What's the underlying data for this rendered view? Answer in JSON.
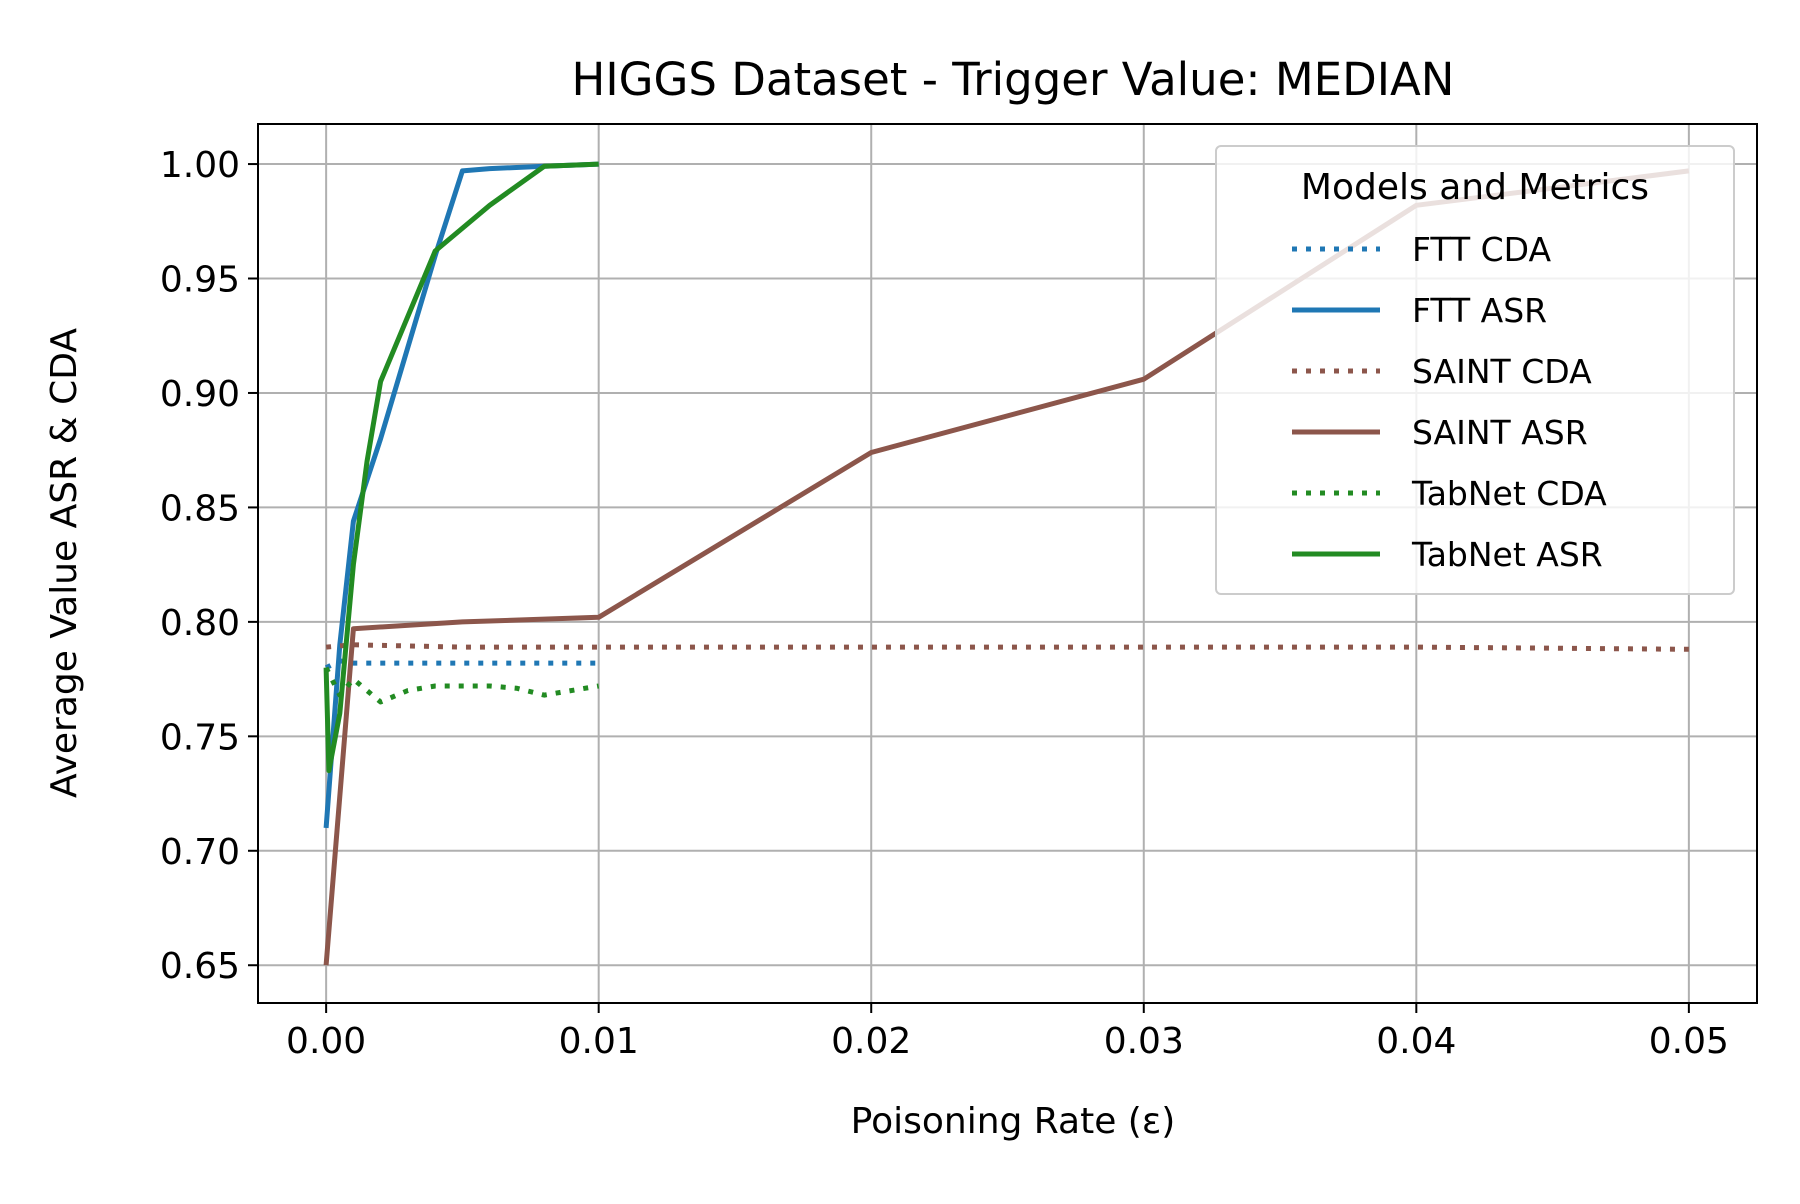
{
  "chart_data": {
    "type": "line",
    "title": "HIGGS Dataset - Trigger Value: MEDIAN",
    "xlabel": "Poisoning Rate (ε)",
    "ylabel": "Average Value ASR & CDA",
    "xlim": [
      -0.0025,
      0.0525
    ],
    "ylim": [
      0.6335,
      1.0175
    ],
    "x_ticks": [
      0.0,
      0.01,
      0.02,
      0.03,
      0.04,
      0.05
    ],
    "x_tick_labels": [
      "0.00",
      "0.01",
      "0.02",
      "0.03",
      "0.04",
      "0.05"
    ],
    "y_ticks": [
      0.65,
      0.7,
      0.75,
      0.8,
      0.85,
      0.9,
      0.95,
      1.0
    ],
    "y_tick_labels": [
      "0.65",
      "0.70",
      "0.75",
      "0.80",
      "0.85",
      "0.90",
      "0.95",
      "1.00"
    ],
    "grid": true,
    "legend": {
      "title": "Models and Metrics",
      "placement": "top-right"
    },
    "series": [
      {
        "name": "FTT CDA",
        "color": "#1f77b4",
        "style": "dotted",
        "points": [
          [
            0.0,
            0.78
          ],
          [
            0.0005,
            0.783
          ],
          [
            0.001,
            0.782
          ],
          [
            0.002,
            0.782
          ],
          [
            0.004,
            0.782
          ],
          [
            0.005,
            0.782
          ],
          [
            0.006,
            0.782
          ],
          [
            0.008,
            0.782
          ],
          [
            0.01,
            0.782
          ]
        ]
      },
      {
        "name": "FTT ASR",
        "color": "#1f77b4",
        "style": "solid",
        "points": [
          [
            0.0,
            0.71
          ],
          [
            0.0005,
            0.79
          ],
          [
            0.001,
            0.844
          ],
          [
            0.002,
            0.88
          ],
          [
            0.004,
            0.96
          ],
          [
            0.005,
            0.997
          ],
          [
            0.006,
            0.998
          ],
          [
            0.008,
            0.999
          ],
          [
            0.01,
            1.0
          ]
        ]
      },
      {
        "name": "SAINT CDA",
        "color": "#8c564b",
        "style": "dotted",
        "points": [
          [
            0.0,
            0.789
          ],
          [
            0.001,
            0.79
          ],
          [
            0.005,
            0.789
          ],
          [
            0.01,
            0.789
          ],
          [
            0.02,
            0.789
          ],
          [
            0.03,
            0.789
          ],
          [
            0.04,
            0.789
          ],
          [
            0.05,
            0.788
          ]
        ]
      },
      {
        "name": "SAINT ASR",
        "color": "#8c564b",
        "style": "solid",
        "points": [
          [
            0.0,
            0.65
          ],
          [
            0.001,
            0.797
          ],
          [
            0.005,
            0.8
          ],
          [
            0.01,
            0.802
          ],
          [
            0.02,
            0.874
          ],
          [
            0.03,
            0.906
          ],
          [
            0.04,
            0.982
          ],
          [
            0.05,
            0.997
          ]
        ]
      },
      {
        "name": "TabNet CDA",
        "color": "#228b22",
        "style": "dotted",
        "points": [
          [
            0.0,
            0.78
          ],
          [
            0.0005,
            0.768
          ],
          [
            0.001,
            0.775
          ],
          [
            0.002,
            0.765
          ],
          [
            0.003,
            0.77
          ],
          [
            0.004,
            0.772
          ],
          [
            0.005,
            0.772
          ],
          [
            0.006,
            0.772
          ],
          [
            0.007,
            0.771
          ],
          [
            0.008,
            0.768
          ],
          [
            0.01,
            0.772
          ]
        ]
      },
      {
        "name": "TabNet ASR",
        "color": "#228b22",
        "style": "solid",
        "points": [
          [
            0.0,
            0.78
          ],
          [
            0.0001,
            0.735
          ],
          [
            0.0005,
            0.76
          ],
          [
            0.001,
            0.825
          ],
          [
            0.0015,
            0.87
          ],
          [
            0.002,
            0.905
          ],
          [
            0.004,
            0.962
          ],
          [
            0.006,
            0.982
          ],
          [
            0.008,
            0.999
          ],
          [
            0.01,
            1.0
          ]
        ]
      }
    ]
  }
}
